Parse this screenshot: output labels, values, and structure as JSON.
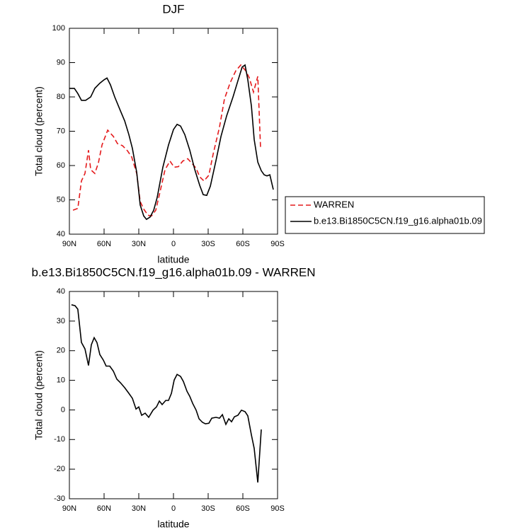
{
  "chart_data": [
    {
      "type": "line",
      "title": "DJF",
      "xlabel": "latitude",
      "ylabel": "Total cloud (percent)",
      "xlim": [
        90,
        -90
      ],
      "xticks": [
        {
          "value": 90,
          "label": "90N"
        },
        {
          "value": 60,
          "label": "60N"
        },
        {
          "value": 30,
          "label": "30N"
        },
        0,
        {
          "value": -30,
          "label": "30S"
        },
        {
          "value": -60,
          "label": "60S"
        },
        {
          "value": -90,
          "label": "90S"
        }
      ],
      "ylim": [
        40,
        100
      ],
      "yticks": [
        40,
        50,
        60,
        70,
        80,
        90,
        100
      ],
      "legend": "right",
      "series": [
        {
          "name": "WARREN",
          "color": "#e41a1c",
          "dash": true,
          "x": [
            86.9,
            82.7,
            79.6,
            76.5,
            73.5,
            71.6,
            68,
            64.9,
            61.8,
            56.9,
            52,
            48.4,
            44.1,
            39.8,
            36.1,
            31.8,
            28.8,
            25.7,
            22,
            19,
            15.3,
            12.2,
            7.3,
            3,
            -0.6,
            -4.3,
            -8,
            -12.3,
            -16.6,
            -19.6,
            -22.7,
            -26.3,
            -30.6,
            -34.3,
            -39.8,
            -44.1,
            -49,
            -53.9,
            -58.2,
            -62.5,
            -65.5,
            -69.2,
            -72.9,
            -75.3
          ],
          "values": [
            47,
            47.5,
            55.5,
            57.7,
            64.5,
            58.8,
            57.7,
            60.8,
            66,
            70.3,
            68.5,
            66.4,
            65.8,
            64.3,
            62.5,
            57.7,
            49.5,
            47.3,
            45.5,
            45.3,
            47,
            51.5,
            58.8,
            61.3,
            59.5,
            59.7,
            61.3,
            62,
            60.4,
            59.2,
            56.7,
            55.5,
            57.2,
            63.3,
            71.2,
            79.4,
            84.1,
            87.6,
            89.3,
            87.6,
            85.6,
            81.4,
            86,
            65
          ]
        },
        {
          "name": "b.e13.Bi1850C5CN.f19_g16.alpha01b.09",
          "color": "#000000",
          "dash": false,
          "x": [
            90,
            85.7,
            82.7,
            79.6,
            75.9,
            71.6,
            68,
            63.7,
            60,
            57.5,
            54.5,
            50.8,
            45.9,
            42.2,
            38.6,
            35.5,
            31.8,
            28.8,
            25.7,
            23.3,
            20.2,
            17.1,
            14.1,
            9.2,
            4.3,
            0,
            -3.1,
            -6.1,
            -9.8,
            -14.1,
            -18.4,
            -22.7,
            -25.7,
            -28.8,
            -31.9,
            -36.8,
            -41.1,
            -46,
            -51.5,
            -55.7,
            -59.4,
            -61.9,
            -64.3,
            -67.4,
            -69.8,
            -72.9,
            -75.9,
            -78.4,
            -80.8,
            -83.3,
            -86.3
          ],
          "values": [
            82.5,
            82.5,
            81,
            79,
            79,
            80,
            82.5,
            84,
            85,
            85.5,
            83.5,
            80,
            76,
            73,
            69,
            65,
            58,
            48.5,
            45.3,
            44.3,
            45,
            47,
            50.7,
            59.5,
            66,
            70.5,
            72,
            71.5,
            69,
            64.5,
            58.8,
            54.2,
            51.5,
            51.3,
            54,
            61.5,
            68.5,
            74.5,
            80,
            84.7,
            88.7,
            89.3,
            85,
            77.3,
            67.6,
            61,
            58.5,
            57.3,
            57,
            57.3,
            53
          ]
        }
      ]
    },
    {
      "type": "line",
      "title": "b.e13.Bi1850C5CN.f19_g16.alpha01b.09 - WARREN",
      "xlabel": "latitude",
      "ylabel": "Total cloud (percent)",
      "xlim": [
        90,
        -90
      ],
      "xticks": [
        {
          "value": 90,
          "label": "90N"
        },
        {
          "value": 60,
          "label": "60N"
        },
        {
          "value": 30,
          "label": "30N"
        },
        0,
        {
          "value": -30,
          "label": "30S"
        },
        {
          "value": -60,
          "label": "60S"
        },
        {
          "value": -90,
          "label": "90S"
        }
      ],
      "ylim": [
        -30,
        40
      ],
      "yticks": [
        -30,
        -20,
        -10,
        0,
        10,
        20,
        30,
        40
      ],
      "series": [
        {
          "color": "#000000",
          "dash": false,
          "x": [
            88.2,
            85.1,
            82.7,
            79.6,
            76.5,
            73.5,
            71,
            68.6,
            66.1,
            63.7,
            60.6,
            58.2,
            55.1,
            52,
            49,
            45.9,
            42.2,
            38.6,
            35.5,
            32.4,
            30,
            27.5,
            24.5,
            21.4,
            17.7,
            14.7,
            12.2,
            9.8,
            6.7,
            4.3,
            1.8,
            -0.6,
            -3.1,
            -6.1,
            -8.6,
            -11.7,
            -14.1,
            -16.6,
            -19.6,
            -22.1,
            -25.1,
            -27.6,
            -30.6,
            -33.1,
            -36.8,
            -39.8,
            -42.3,
            -45.3,
            -47.8,
            -50.2,
            -52.7,
            -55.7,
            -58.8,
            -61.9,
            -64.3,
            -67.4,
            -69.8,
            -72.9,
            -75.9
          ],
          "values": [
            35.5,
            35.2,
            34,
            22.8,
            20.6,
            15,
            22,
            24.4,
            22.7,
            18.7,
            16.8,
            14.8,
            14.8,
            13.1,
            10.4,
            9.2,
            7.5,
            5.6,
            3.9,
            0.3,
            1,
            -1.8,
            -1.1,
            -2.5,
            -0.1,
            1,
            3,
            1.8,
            3.2,
            3.2,
            5.6,
            10.1,
            12,
            11.3,
            9.6,
            6.3,
            4.6,
            2.2,
            -0.1,
            -3,
            -4.2,
            -4.7,
            -4.5,
            -2.8,
            -2.5,
            -2.8,
            -1.6,
            -4.9,
            -3,
            -4,
            -2.3,
            -1.8,
            -0.1,
            -0.6,
            -2,
            -8.5,
            -13,
            -24.5,
            -6.6
          ]
        }
      ]
    }
  ]
}
